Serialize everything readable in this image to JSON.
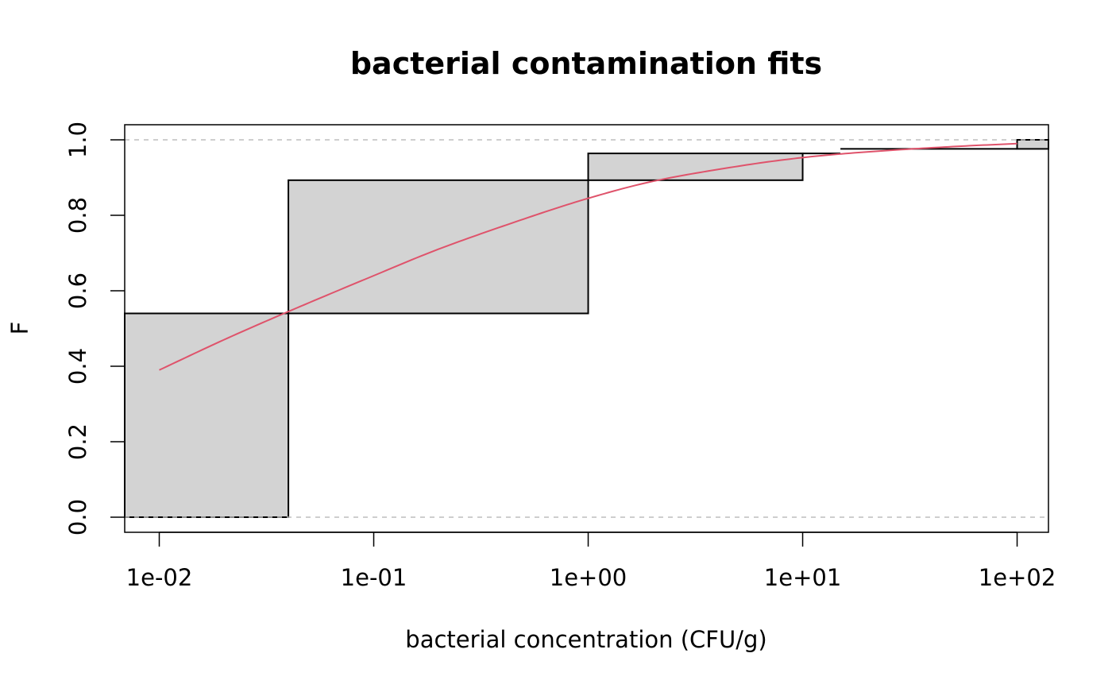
{
  "chart_data": {
    "type": "area",
    "title": "bacterial contamination fits",
    "xlabel": "bacterial concentration (CFU/g)",
    "ylabel": "F",
    "x_scale": "log10",
    "xlim": [
      0.0069,
      140
    ],
    "ylim": [
      -0.04,
      1.04
    ],
    "x_ticks": [
      0.01,
      0.1,
      1,
      10,
      100
    ],
    "x_tick_labels": [
      "1e-02",
      "1e-01",
      "1e+00",
      "1e+01",
      "1e+02"
    ],
    "y_ticks": [
      0,
      0.2,
      0.4,
      0.6,
      0.8,
      1
    ],
    "y_tick_labels": [
      "0.0",
      "0.2",
      "0.4",
      "0.6",
      "0.8",
      "1.0"
    ],
    "reference_lines": [
      0,
      1
    ],
    "grid": false,
    "colors": {
      "fill": "#d3d3d3",
      "fit": "#df536b",
      "reference": "#bebebe",
      "edge": "#000000"
    },
    "empirical_bands": [
      {
        "x_from": 0.0069,
        "x_to": 0.04,
        "lower": 0.0,
        "upper": 0.54
      },
      {
        "x_from": 0.04,
        "x_to": 1,
        "lower": 0.54,
        "upper": 0.893
      },
      {
        "x_from": 1,
        "x_to": 10,
        "lower": 0.893,
        "upper": 0.964
      },
      {
        "x_from": 10,
        "x_to": 15,
        "lower": 0.964,
        "upper": 0.964
      },
      {
        "x_from": 15,
        "x_to": 100,
        "lower": 0.976,
        "upper": 0.976
      },
      {
        "x_from": 100,
        "x_to": 140,
        "lower": 0.976,
        "upper": 1.0
      }
    ],
    "series": [
      {
        "x": [
          0.01,
          0.02,
          0.04,
          0.1,
          0.2,
          0.5,
          1,
          2,
          5,
          10,
          20,
          50,
          100
        ],
        "values": [
          0.39,
          0.47,
          0.545,
          0.64,
          0.71,
          0.79,
          0.845,
          0.89,
          0.93,
          0.953,
          0.968,
          0.982,
          0.99
        ]
      }
    ]
  }
}
